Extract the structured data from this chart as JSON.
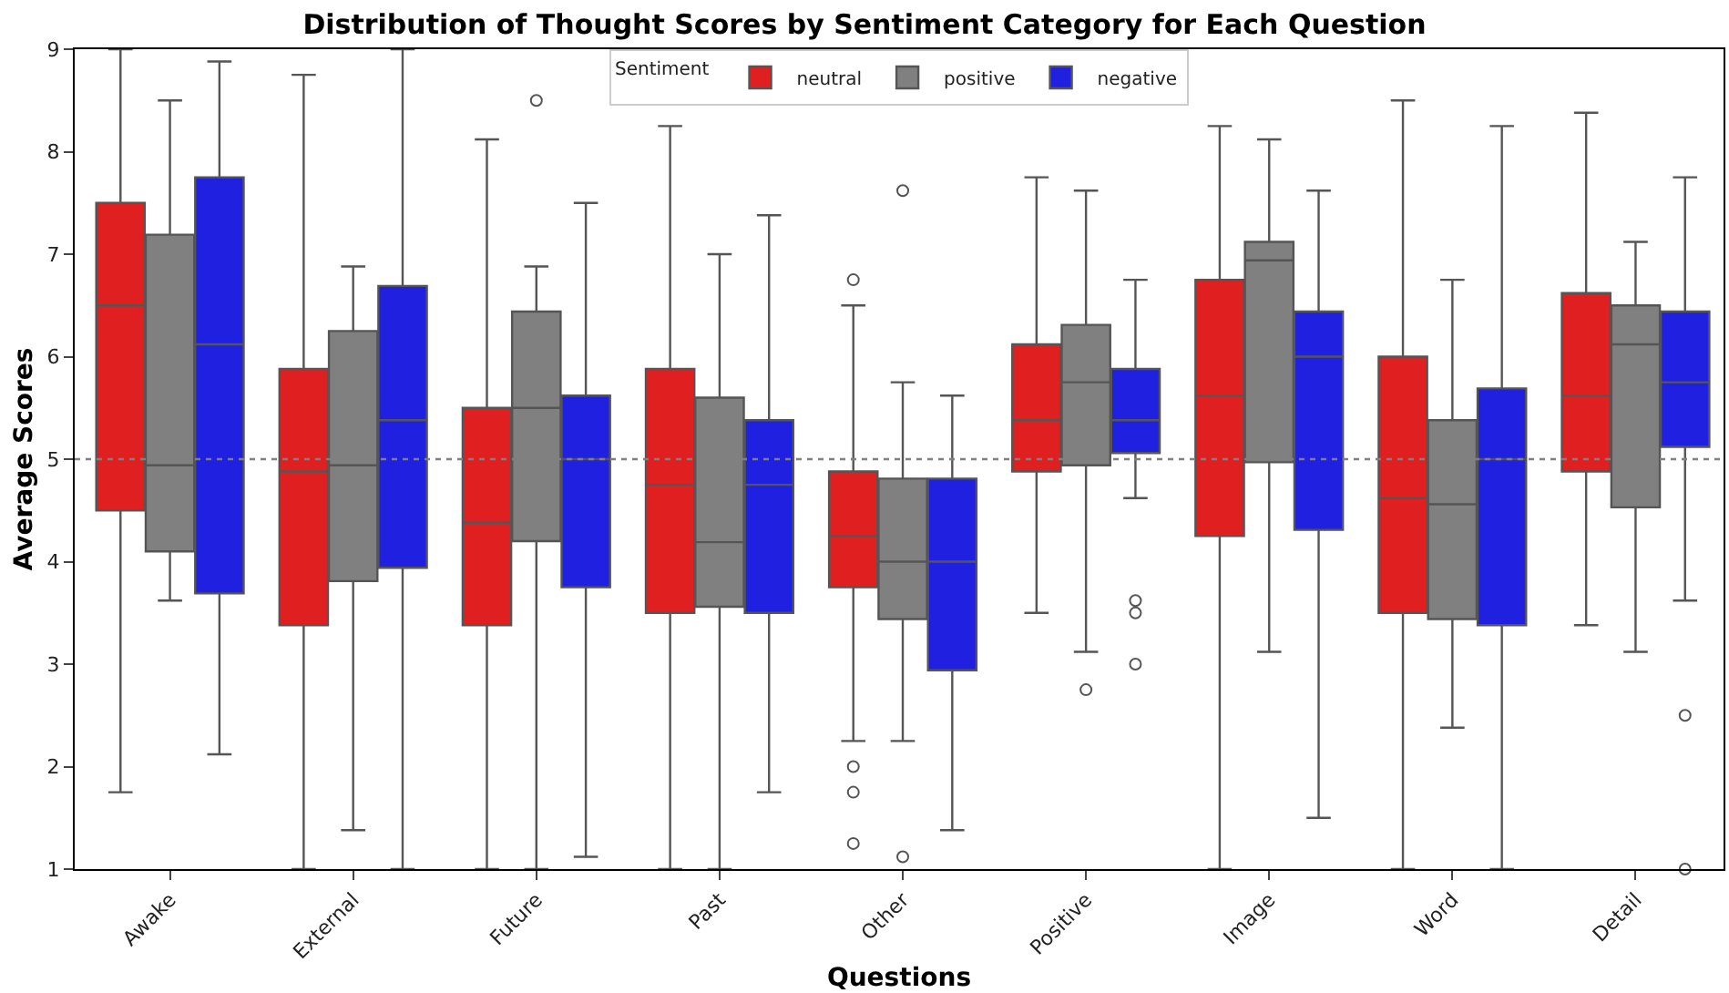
{
  "chart_data": {
    "type": "box",
    "title": "Distribution of Thought Scores by Sentiment Category for Each Question",
    "xlabel": "Questions",
    "ylabel": "Average Scores",
    "legend_title": "Sentiment",
    "legend": "top",
    "categories": [
      "Awake",
      "External",
      "Future",
      "Past",
      "Other",
      "Positive",
      "Image",
      "Word",
      "Detail"
    ],
    "ylim": [
      1,
      9
    ],
    "yticks": [
      1,
      2,
      3,
      4,
      5,
      6,
      7,
      8,
      9
    ],
    "ref_lines": [
      {
        "axis": "y",
        "value": 5,
        "line_style": "dotted",
        "color": "#808080"
      }
    ],
    "series": [
      {
        "name": "neutral",
        "color": "#e02020",
        "boxes": [
          {
            "low": 1.75,
            "q1": 4.5,
            "median": 6.5,
            "q3": 7.5,
            "high": 9
          },
          {
            "low": 1,
            "q1": 3.38,
            "median": 4.88,
            "q3": 5.88,
            "high": 8.75
          },
          {
            "low": 1,
            "q1": 3.38,
            "median": 4.38,
            "q3": 5.5,
            "high": 8.12
          },
          {
            "low": 1,
            "q1": 3.5,
            "median": 4.75,
            "q3": 5.88,
            "high": 8.25
          },
          {
            "low": 2.25,
            "q1": 3.75,
            "median": 4.25,
            "q3": 4.88,
            "high": 6.5,
            "outliers": [
              6.75,
              2.0,
              1.75,
              1.25
            ]
          },
          {
            "low": 3.5,
            "q1": 4.88,
            "median": 5.38,
            "q3": 6.12,
            "high": 7.75
          },
          {
            "low": 1,
            "q1": 4.25,
            "median": 5.62,
            "q3": 6.75,
            "high": 8.25
          },
          {
            "low": 1,
            "q1": 3.5,
            "median": 4.62,
            "q3": 6.0,
            "high": 8.5
          },
          {
            "low": 3.38,
            "q1": 4.88,
            "median": 5.62,
            "q3": 6.62,
            "high": 8.38
          }
        ]
      },
      {
        "name": "positive",
        "color": "#808080",
        "boxes": [
          {
            "low": 3.62,
            "q1": 4.1,
            "median": 4.94,
            "q3": 7.19,
            "high": 8.5
          },
          {
            "low": 1.38,
            "q1": 3.81,
            "median": 4.94,
            "q3": 6.25,
            "high": 6.88
          },
          {
            "low": 1,
            "q1": 4.2,
            "median": 5.5,
            "q3": 6.44,
            "high": 6.88,
            "outliers": [
              8.5
            ]
          },
          {
            "low": 1,
            "q1": 3.56,
            "median": 4.19,
            "q3": 5.6,
            "high": 7.0
          },
          {
            "low": 2.25,
            "q1": 3.44,
            "median": 4.0,
            "q3": 4.81,
            "high": 5.75,
            "outliers": [
              7.62,
              1.12
            ]
          },
          {
            "low": 3.12,
            "q1": 4.94,
            "median": 5.75,
            "q3": 6.31,
            "high": 7.62,
            "outliers": [
              2.75
            ]
          },
          {
            "low": 3.12,
            "q1": 4.97,
            "median": 6.94,
            "q3": 7.12,
            "high": 8.12
          },
          {
            "low": 2.38,
            "q1": 3.44,
            "median": 4.56,
            "q3": 5.38,
            "high": 6.75
          },
          {
            "low": 3.12,
            "q1": 4.53,
            "median": 6.12,
            "q3": 6.5,
            "high": 7.12
          }
        ]
      },
      {
        "name": "negative",
        "color": "#2020e0",
        "boxes": [
          {
            "low": 2.12,
            "q1": 3.69,
            "median": 6.12,
            "q3": 7.75,
            "high": 8.88
          },
          {
            "low": 1,
            "q1": 3.94,
            "median": 5.38,
            "q3": 6.69,
            "high": 9
          },
          {
            "low": 1.12,
            "q1": 3.75,
            "median": 5.0,
            "q3": 5.62,
            "high": 7.5
          },
          {
            "low": 1.75,
            "q1": 3.5,
            "median": 4.75,
            "q3": 5.38,
            "high": 7.38
          },
          {
            "low": 1.38,
            "q1": 2.94,
            "median": 4.0,
            "q3": 4.81,
            "high": 5.62
          },
          {
            "low": 4.62,
            "q1": 5.06,
            "median": 5.38,
            "q3": 5.88,
            "high": 6.75,
            "outliers": [
              3.62,
              3.5,
              3.0
            ]
          },
          {
            "low": 1.5,
            "q1": 4.31,
            "median": 6.0,
            "q3": 6.44,
            "high": 7.62
          },
          {
            "low": 1,
            "q1": 3.38,
            "median": 5.0,
            "q3": 5.69,
            "high": 8.25
          },
          {
            "low": 3.62,
            "q1": 5.12,
            "median": 5.75,
            "q3": 6.44,
            "high": 7.75,
            "outliers": [
              2.5,
              1.0
            ]
          }
        ]
      }
    ]
  }
}
